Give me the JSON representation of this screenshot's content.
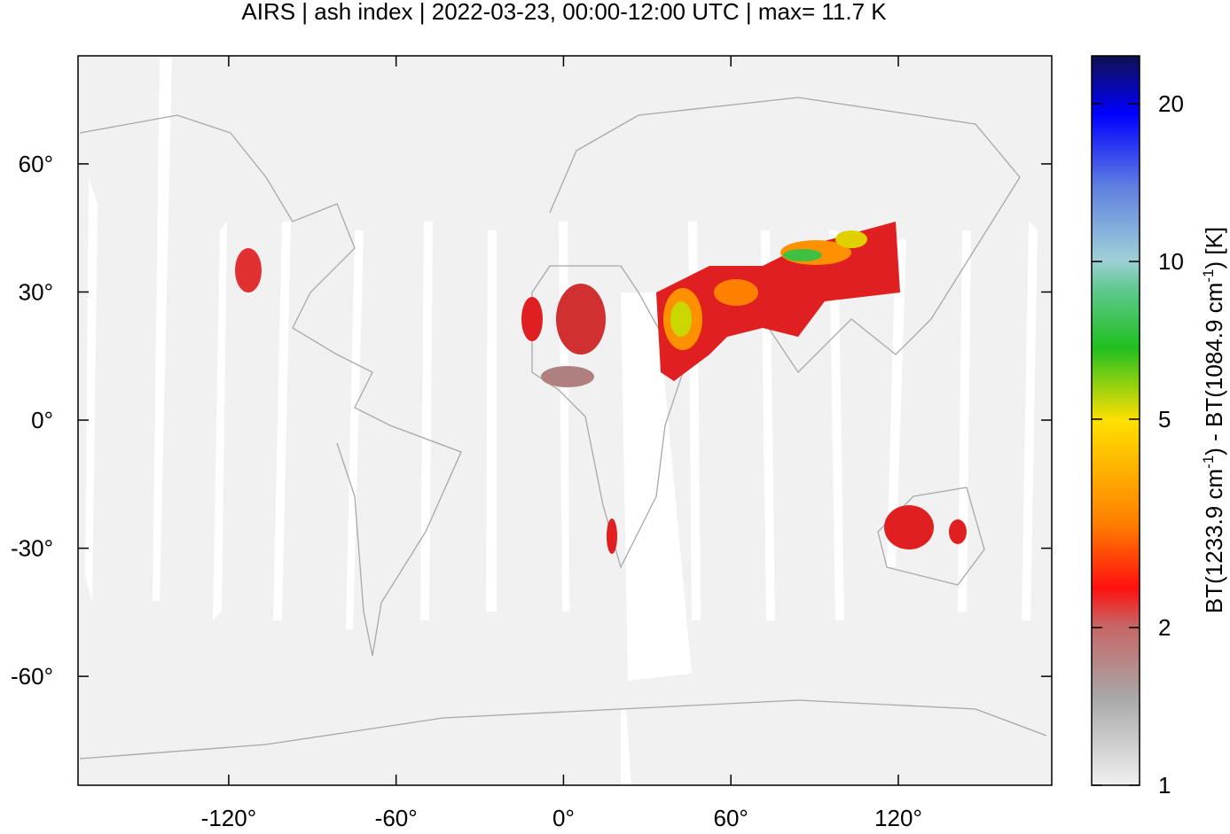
{
  "chart_data": {
    "type": "map",
    "title": "AIRS | ash index | 2022-03-23, 00:00-12:00 UTC | max= 11.7 K",
    "xlim": [
      -174,
      175
    ],
    "ylim": [
      -85.5,
      85.3
    ],
    "xticks": [
      {
        "value": -120,
        "label": "-120°"
      },
      {
        "value": -60,
        "label": "-60°"
      },
      {
        "value": 0,
        "label": "0°"
      },
      {
        "value": 60,
        "label": "60°"
      },
      {
        "value": 120,
        "label": "120°"
      }
    ],
    "yticks": [
      {
        "value": -60,
        "label": "-60°"
      },
      {
        "value": -30,
        "label": "-30°"
      },
      {
        "value": 0,
        "label": "0°"
      },
      {
        "value": 30,
        "label": "30°"
      },
      {
        "value": 60,
        "label": "60°"
      }
    ],
    "colorbar": {
      "log_scale": true,
      "lim": [
        1,
        24.7
      ],
      "ticks": [
        1,
        2,
        5,
        10,
        20
      ],
      "label": [
        "BT(1233.9 cm",
        "-1",
        ") - BT(1084.9 cm",
        "-1",
        ") [K]"
      ]
    }
  }
}
